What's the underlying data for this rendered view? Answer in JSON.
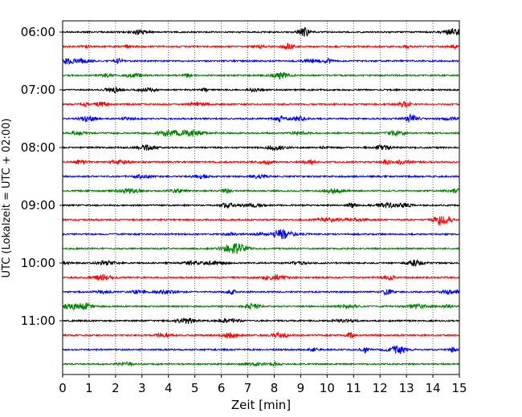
{
  "chart_data": {
    "type": "line",
    "title": "",
    "xlabel": "Zeit  [min]",
    "ylabel": "UTC (Lokalzeit = UTC + 02:00)",
    "xlim": [
      0,
      15
    ],
    "x_ticks": [
      0,
      1,
      2,
      3,
      4,
      5,
      6,
      7,
      8,
      9,
      10,
      11,
      12,
      13,
      14,
      15
    ],
    "x_tick_labels": [
      "0",
      "1",
      "2",
      "3",
      "4",
      "5",
      "6",
      "7",
      "8",
      "9",
      "10",
      "11",
      "12",
      "13",
      "14",
      "15"
    ],
    "y_tick_labels": [
      "06:00",
      "07:00",
      "08:00",
      "09:00",
      "10:00",
      "11:00"
    ],
    "grid": {
      "x": true,
      "style": "dotted"
    },
    "trace_interval_min": 15,
    "first_trace": "06:00",
    "last_trace": "11:45",
    "trace_colors": [
      "#000000",
      "#ff0000",
      "#0000ff",
      "#008000"
    ],
    "trace_count": 24
  }
}
